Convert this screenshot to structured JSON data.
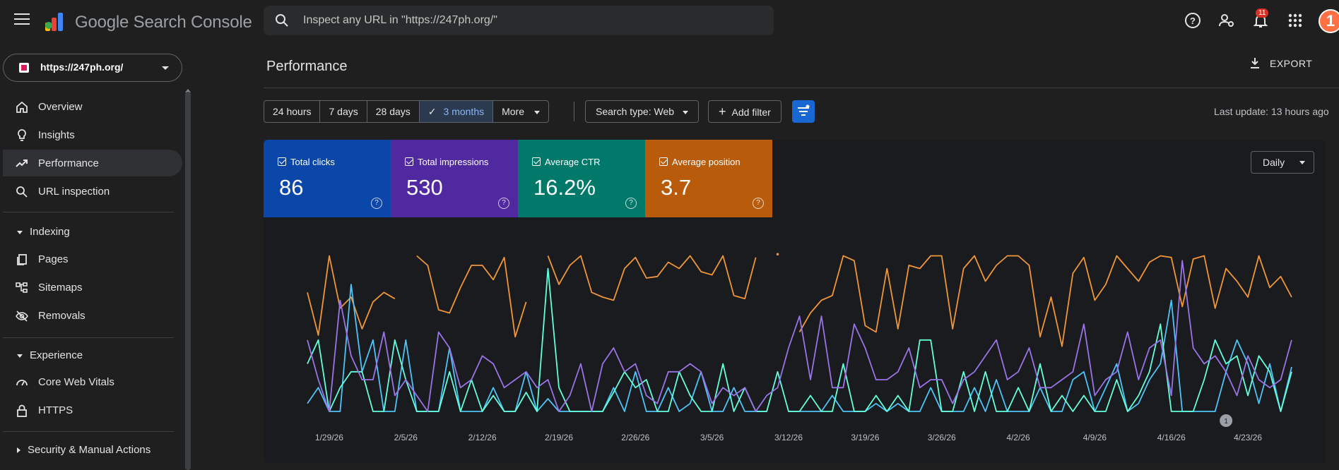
{
  "topbar": {
    "brand": "Google Search Console",
    "search_placeholder": "Inspect any URL in \"https://247ph.org/\"",
    "notification_count": "11",
    "avatar_letter": "1",
    "icons": [
      "menu-icon",
      "search-icon",
      "help-icon",
      "manage-accounts-icon",
      "notifications-icon",
      "apps-grid-icon"
    ]
  },
  "sidebar": {
    "property": "https://247ph.org/",
    "items": [
      {
        "label": "Overview",
        "icon": "home-icon"
      },
      {
        "label": "Insights",
        "icon": "lightbulb-icon"
      },
      {
        "label": "Performance",
        "icon": "trending-up-icon",
        "active": true
      },
      {
        "label": "URL inspection",
        "icon": "search-icon"
      }
    ],
    "indexing": {
      "title": "Indexing",
      "items": [
        {
          "label": "Pages",
          "icon": "pages-icon"
        },
        {
          "label": "Sitemaps",
          "icon": "sitemap-icon"
        },
        {
          "label": "Removals",
          "icon": "visibility-off-icon"
        }
      ]
    },
    "experience": {
      "title": "Experience",
      "items": [
        {
          "label": "Core Web Vitals",
          "icon": "speed-icon"
        },
        {
          "label": "HTTPS",
          "icon": "lock-icon"
        }
      ]
    },
    "security": {
      "title": "Security & Manual Actions"
    }
  },
  "main": {
    "title": "Performance",
    "export_label": "EXPORT",
    "ranges": [
      "24 hours",
      "7 days",
      "28 days",
      "3 months"
    ],
    "selected_range": "3 months",
    "more_label": "More",
    "search_type": "Search type: Web",
    "add_filter": "Add filter",
    "last_update": "Last update: 13 hours ago",
    "granularity": "Daily",
    "metrics": [
      {
        "title": "Total clicks",
        "value": "86",
        "color": "#0b47a8"
      },
      {
        "title": "Total impressions",
        "value": "530",
        "color": "#5028a0"
      },
      {
        "title": "Average CTR",
        "value": "16.2%",
        "color": "#00796b"
      },
      {
        "title": "Average position",
        "value": "3.7",
        "color": "#b85c0c"
      }
    ],
    "annotation_marker": "1"
  },
  "chart_data": {
    "type": "line",
    "x_tick_labels": [
      "1/29/26",
      "2/5/26",
      "2/12/26",
      "2/19/26",
      "2/26/26",
      "3/5/26",
      "3/12/26",
      "3/19/26",
      "3/26/26",
      "4/2/26",
      "4/9/26",
      "4/16/26",
      "4/23/26"
    ],
    "x_start": "1/27/26",
    "x_step_days": 1,
    "series": [
      {
        "key": "position",
        "color": "#f0963a",
        "values": [
          25,
          52,
          2,
          35,
          28,
          48,
          31,
          25,
          29,
          null,
          2,
          8,
          36,
          38,
          22,
          8,
          8,
          17,
          3,
          53,
          31,
          null,
          2,
          20,
          8,
          2,
          25,
          28,
          30,
          10,
          3,
          16,
          15,
          6,
          10,
          2,
          12,
          14,
          2,
          27,
          29,
          3,
          null,
          1,
          null,
          50,
          38,
          30,
          27,
          2,
          5,
          46,
          50,
          10,
          48,
          8,
          10,
          2,
          2,
          48,
          10,
          2,
          18,
          8,
          2,
          2,
          8,
          53,
          28,
          59,
          13,
          3,
          30,
          20,
          2,
          10,
          18,
          6,
          2,
          3,
          34,
          4,
          2,
          35,
          10,
          18,
          28,
          2,
          22,
          15,
          28
        ]
      },
      {
        "key": "clicks",
        "color": "#4fc3f7",
        "values": [
          95,
          85,
          100,
          100,
          20,
          75,
          55,
          100,
          100,
          55,
          100,
          100,
          100,
          60,
          100,
          100,
          100,
          85,
          100,
          100,
          75,
          100,
          92,
          100,
          100,
          100,
          100,
          100,
          85,
          100,
          75,
          100,
          100,
          85,
          100,
          95,
          75,
          100,
          100,
          85,
          100,
          100,
          100,
          null,
          100,
          100,
          100,
          100,
          90,
          100,
          100,
          100,
          95,
          100,
          95,
          100,
          100,
          85,
          100,
          100,
          100,
          85,
          100,
          80,
          100,
          100,
          100,
          85,
          100,
          100,
          80,
          75,
          100,
          85,
          70,
          100,
          95,
          80,
          70,
          30,
          100,
          100,
          100,
          100,
          75,
          55,
          70,
          95,
          70,
          100,
          72
        ]
      },
      {
        "key": "ctr",
        "color": "#64ffda",
        "values": [
          70,
          55,
          100,
          85,
          75,
          75,
          100,
          100,
          55,
          80,
          100,
          100,
          100,
          75,
          100,
          80,
          100,
          90,
          100,
          100,
          88,
          100,
          10,
          85,
          100,
          100,
          100,
          100,
          88,
          75,
          85,
          80,
          100,
          100,
          75,
          90,
          100,
          100,
          70,
          100,
          85,
          100,
          100,
          75,
          100,
          100,
          90,
          100,
          100,
          70,
          100,
          100,
          90,
          100,
          90,
          100,
          55,
          55,
          100,
          100,
          75,
          100,
          75,
          100,
          100,
          85,
          100,
          70,
          100,
          90,
          100,
          90,
          100,
          100,
          80,
          100,
          90,
          75,
          45,
          100,
          100,
          100,
          80,
          55,
          70,
          65,
          90,
          65,
          75,
          100,
          75
        ]
      },
      {
        "key": "impressions",
        "color": "#9a73e6",
        "values": [
          55,
          80,
          100,
          30,
          65,
          80,
          80,
          50,
          90,
          80,
          90,
          100,
          50,
          60,
          85,
          80,
          65,
          70,
          85,
          80,
          75,
          85,
          80,
          100,
          90,
          70,
          100,
          70,
          60,
          75,
          70,
          90,
          95,
          75,
          75,
          70,
          75,
          95,
          85,
          90,
          85,
          100,
          90,
          85,
          60,
          40,
          80,
          40,
          85,
          85,
          45,
          60,
          80,
          80,
          75,
          60,
          85,
          80,
          80,
          95,
          80,
          75,
          65,
          55,
          80,
          75,
          60,
          85,
          85,
          80,
          75,
          45,
          90,
          80,
          75,
          50,
          80,
          60,
          55,
          90,
          5,
          60,
          70,
          65,
          75,
          90,
          65,
          80,
          85,
          80,
          55
        ]
      }
    ],
    "scale_note": "Each series is drawn normalized to its own range (GSC style); values above are relative percentages read from the plot (0 = top, 100 = bottom of plot area)."
  }
}
